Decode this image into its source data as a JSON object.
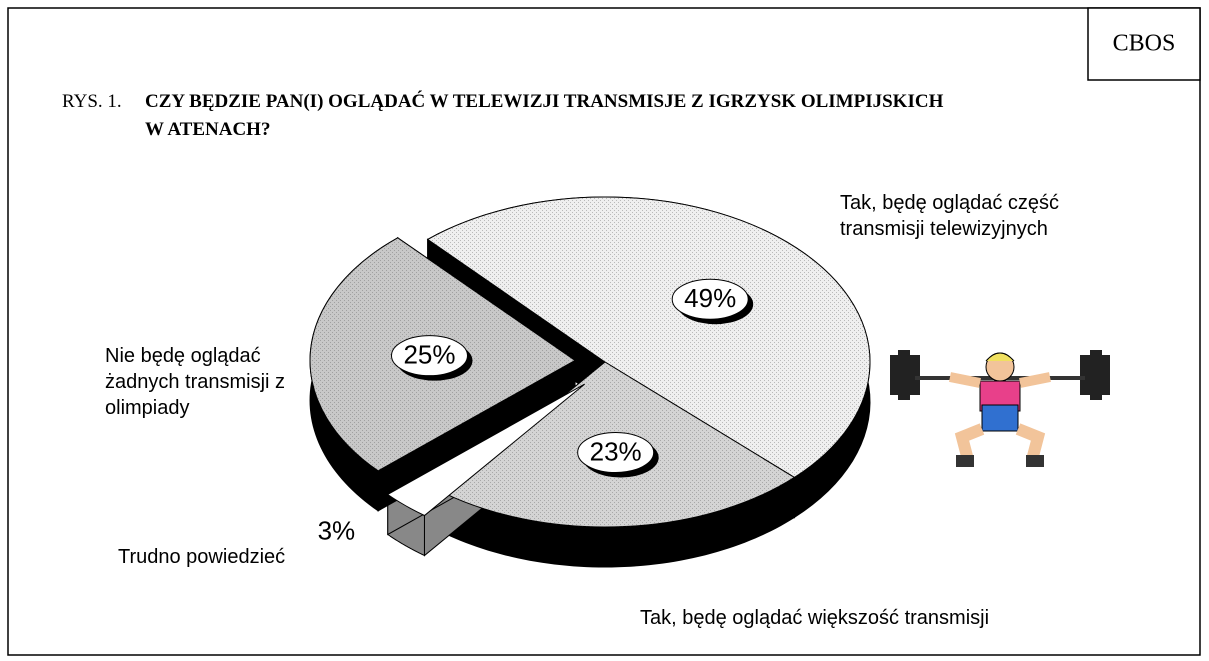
{
  "chart_data": {
    "type": "pie",
    "source": "CBOS",
    "figure_label": "RYS. 1.",
    "title": "CZY BĘDZIE PAN(I) OGLĄDAĆ W TELEWIZJI TRANSMISJE Z IGRZYSK OLIMPIJSKICH W ATENACH?",
    "categories": [
      "Tak, będę oglądać część transmisji telewizyjnych",
      "Tak, będę oglądać większość transmisji",
      "Trudno powiedzieć",
      "Nie będę oglądać żadnych transmisji z olimpiady"
    ],
    "values": [
      49,
      23,
      3,
      25
    ],
    "value_labels": [
      "49%",
      "23%",
      "3%",
      "25%"
    ],
    "colors": [
      "#efefef",
      "#d4d4d4",
      "#ffffff",
      "#c8c8c8"
    ],
    "explode": [
      0,
      0,
      1,
      1
    ]
  }
}
